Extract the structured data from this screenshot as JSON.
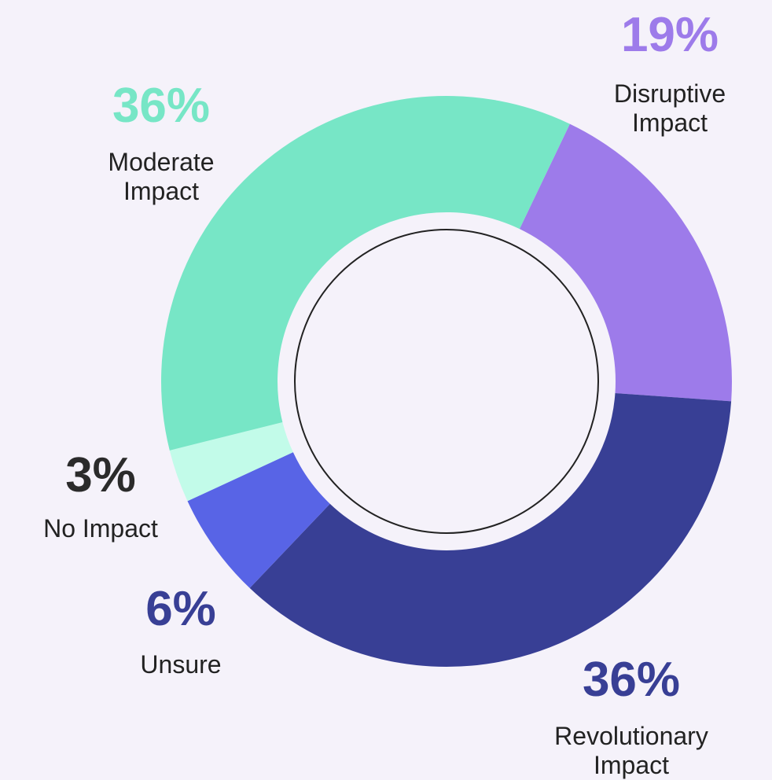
{
  "chart_data": {
    "type": "donut",
    "categories": [
      "Disruptive Impact",
      "Revolutionary Impact",
      "Unsure",
      "No Impact",
      "Moderate Impact"
    ],
    "values": [
      19,
      36,
      6,
      3,
      36
    ],
    "value_labels": [
      "19%",
      "36%",
      "6%",
      "3%",
      "36%"
    ],
    "colors": [
      "#9d7bea",
      "#383f95",
      "#5864e6",
      "#c2fbe9",
      "#77e6c6"
    ],
    "label_colors": [
      "#9d7bea",
      "#383f95",
      "#383f95",
      "#2b2b2b",
      "#77e6c6"
    ]
  }
}
